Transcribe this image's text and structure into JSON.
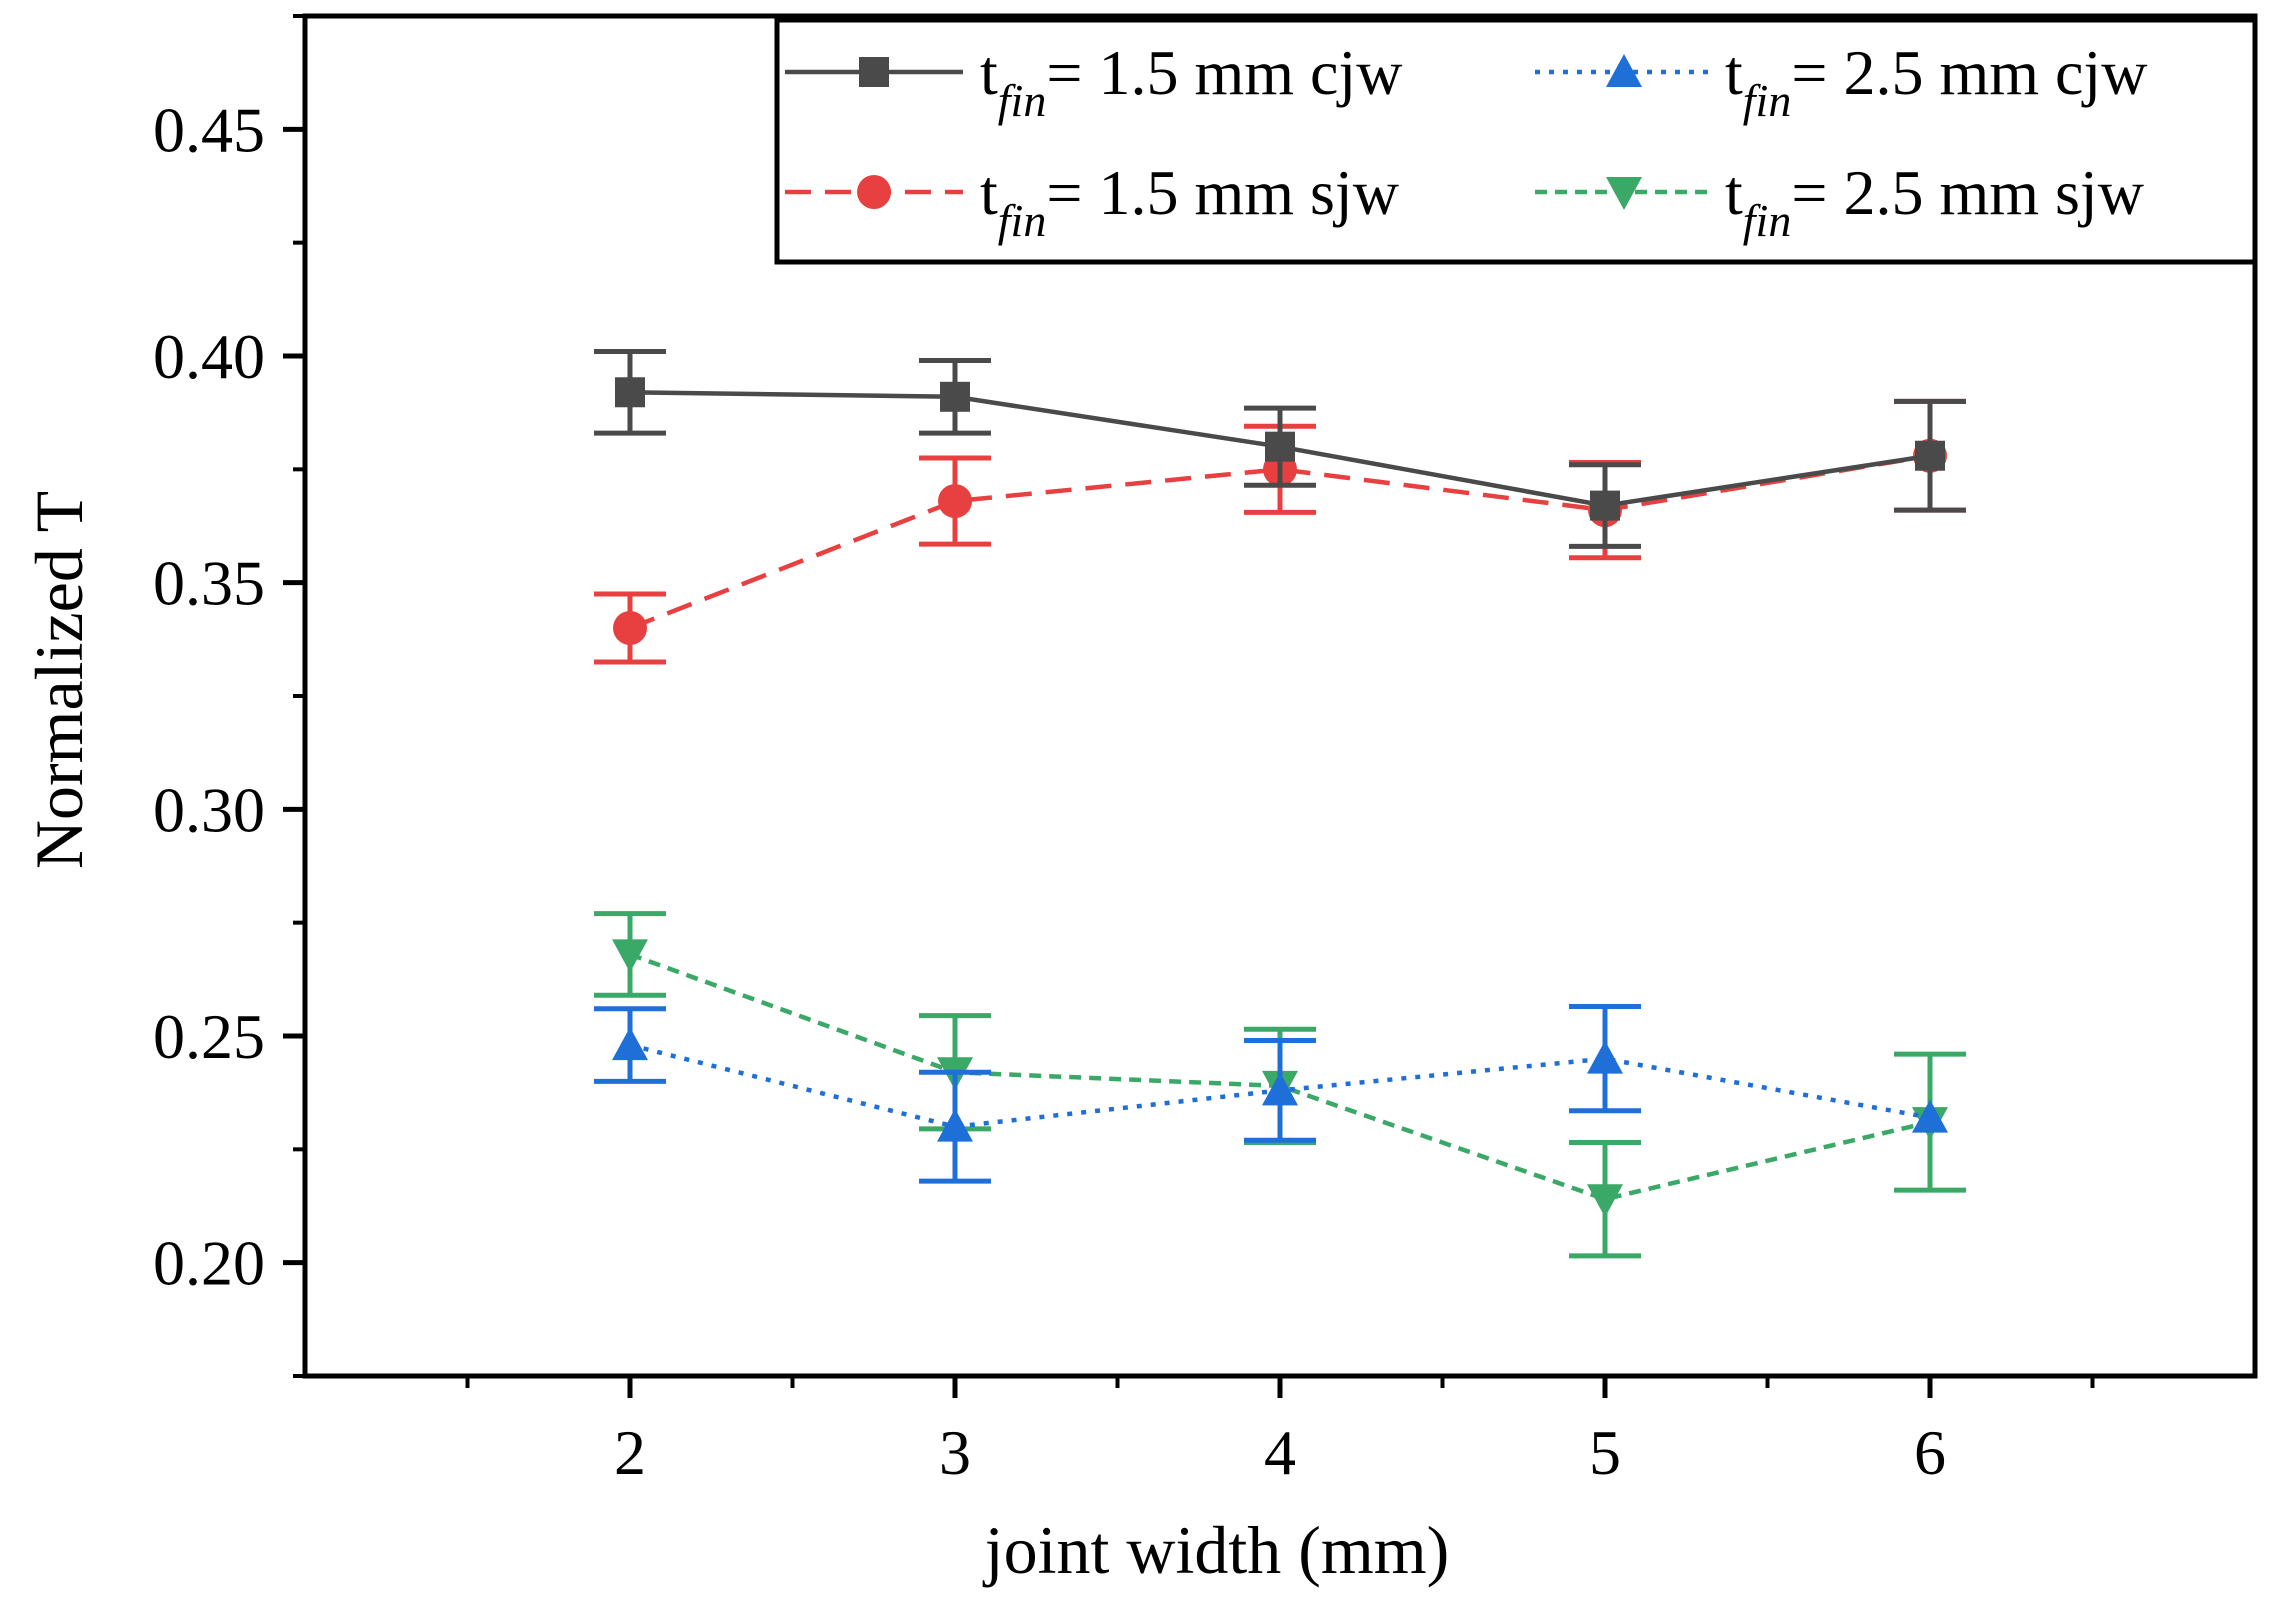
{
  "chart_data": {
    "type": "line",
    "title": "",
    "xlabel": "joint width (mm)",
    "ylabel": "Normalized T",
    "xlim": [
      1,
      7
    ],
    "ylim": [
      0.175,
      0.475
    ],
    "xticks": [
      2,
      3,
      4,
      5,
      6
    ],
    "xtick_labels": [
      "2",
      "3",
      "4",
      "5",
      "6"
    ],
    "yticks": [
      0.2,
      0.25,
      0.3,
      0.35,
      0.4,
      0.45
    ],
    "ytick_labels": [
      "0.20",
      "0.25",
      "0.30",
      "0.35",
      "0.40",
      "0.45"
    ],
    "grid": false,
    "legend_position": "top-right",
    "x": [
      2,
      3,
      4,
      5,
      6
    ],
    "series": [
      {
        "name_prefix": "t",
        "name_sub": "fin",
        "name_suffix": "= 1.5 mm cjw",
        "color": "#4a4a4a",
        "marker": "square",
        "line_style": "solid",
        "values": [
          0.392,
          0.391,
          0.38,
          0.367,
          0.378
        ],
        "errors": [
          0.009,
          0.008,
          0.0085,
          0.009,
          0.012
        ]
      },
      {
        "name_prefix": "t",
        "name_sub": "fin",
        "name_suffix": "= 2.5 mm cjw",
        "color": "#1f6fd8",
        "marker": "triangle-up",
        "line_style": "dotted",
        "values": [
          0.248,
          0.23,
          0.238,
          0.245,
          0.232
        ],
        "errors": [
          0.008,
          0.012,
          0.011,
          0.0115,
          0.0
        ]
      },
      {
        "name_prefix": "t",
        "name_sub": "fin",
        "name_suffix": "= 1.5 mm sjw",
        "color": "#e84040",
        "marker": "circle",
        "line_style": "dashed",
        "values": [
          0.34,
          0.368,
          0.375,
          0.366,
          0.378
        ],
        "errors": [
          0.0075,
          0.0095,
          0.0095,
          0.0105,
          0.012
        ]
      },
      {
        "name_prefix": "t",
        "name_sub": "fin",
        "name_suffix": "= 2.5 mm sjw",
        "color": "#3aa866",
        "marker": "triangle-down",
        "line_style": "short-dashed",
        "values": [
          0.268,
          0.242,
          0.239,
          0.214,
          0.231
        ],
        "errors": [
          0.009,
          0.0125,
          0.0125,
          0.0125,
          0.015
        ]
      }
    ]
  }
}
